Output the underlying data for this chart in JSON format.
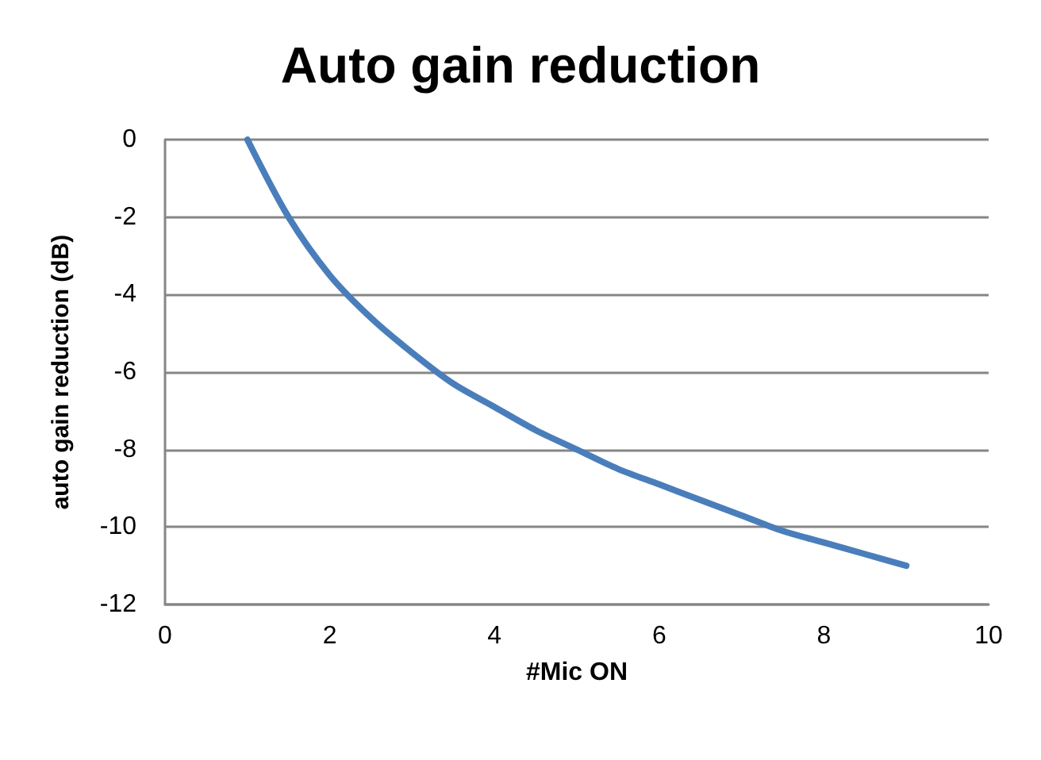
{
  "chart_data": {
    "type": "line",
    "title": "Auto gain reduction",
    "xlabel": "#Mic ON",
    "ylabel": "auto gain reduction (dB)",
    "x": [
      1,
      1.5,
      2,
      2.5,
      3,
      3.5,
      4,
      4.5,
      5,
      5.5,
      6,
      6.5,
      7,
      7.5,
      8,
      8.5,
      9
    ],
    "series": [
      {
        "color": "#4a7ebb",
        "values": [
          0,
          -2.0,
          -3.5,
          -4.6,
          -5.5,
          -6.3,
          -6.9,
          -7.5,
          -8.0,
          -8.5,
          -8.9,
          -9.3,
          -9.7,
          -10.1,
          -10.4,
          -10.7,
          -11.0
        ]
      }
    ],
    "xlim": [
      0,
      10
    ],
    "xticks": [
      0,
      2,
      4,
      6,
      8,
      10
    ],
    "ylim": [
      -12,
      0
    ],
    "yticks": [
      -12,
      -10,
      -8,
      -6,
      -4,
      -2,
      0
    ],
    "grid": "y",
    "marker": "none",
    "line_style": "solid"
  }
}
